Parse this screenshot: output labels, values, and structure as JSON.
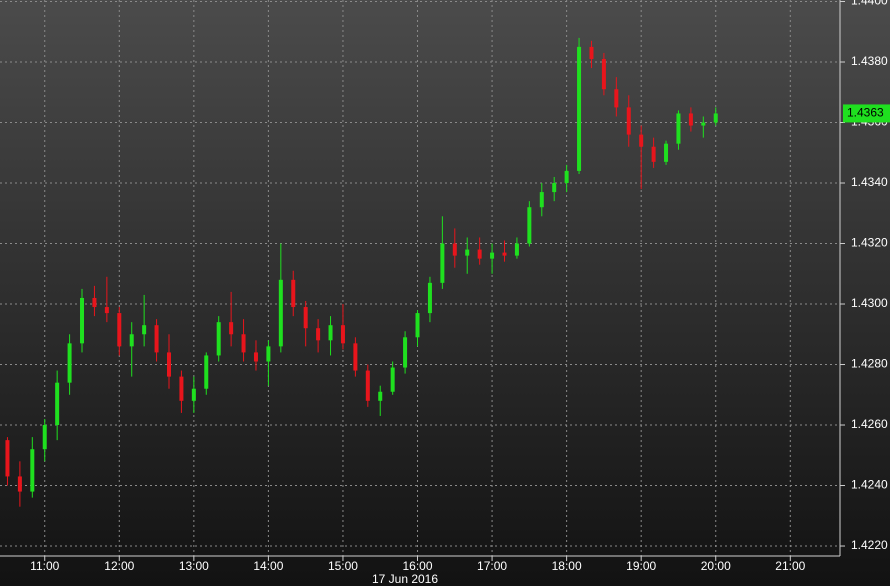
{
  "chart_data": {
    "type": "candlestick",
    "up_color": "#1fe01f",
    "down_color": "#e8151c",
    "grid": true,
    "x": [
      630,
      640,
      650,
      660,
      670,
      680,
      690,
      700,
      710,
      720,
      730,
      740,
      750,
      760,
      770,
      780,
      790,
      800,
      810,
      820,
      830,
      840,
      850,
      860,
      870,
      880,
      890,
      900,
      910,
      920,
      930,
      940,
      950,
      960,
      970,
      980,
      990,
      1000,
      1010,
      1020,
      1030,
      1040,
      1050,
      1060,
      1070,
      1080,
      1090,
      1100,
      1110,
      1120,
      1130,
      1140,
      1150,
      1160,
      1170,
      1180,
      1190,
      1200
    ],
    "open": [
      1.4255,
      1.4243,
      1.4238,
      1.4252,
      1.426,
      1.4274,
      1.4287,
      1.4302,
      1.4299,
      1.4297,
      1.4286,
      1.429,
      1.4293,
      1.4284,
      1.4276,
      1.4268,
      1.4272,
      1.4283,
      1.4294,
      1.429,
      1.4284,
      1.4281,
      1.4286,
      1.4308,
      1.4299,
      1.4292,
      1.4288,
      1.4293,
      1.4287,
      1.4278,
      1.4268,
      1.4271,
      1.4279,
      1.4289,
      1.4297,
      1.4307,
      1.432,
      1.4316,
      1.4318,
      1.4315,
      1.4317,
      1.4316,
      1.432,
      1.4332,
      1.4337,
      1.434,
      1.4344,
      1.4385,
      1.4381,
      1.4371,
      1.4365,
      1.4356,
      1.4352,
      1.4347,
      1.4353,
      1.4363,
      1.4359,
      1.436
    ],
    "high": [
      1.4256,
      1.4248,
      1.4256,
      1.4262,
      1.4278,
      1.429,
      1.4305,
      1.4306,
      1.4309,
      1.4299,
      1.4294,
      1.4303,
      1.4295,
      1.429,
      1.4278,
      1.4276,
      1.4284,
      1.4296,
      1.4304,
      1.4295,
      1.4288,
      1.4288,
      1.432,
      1.4311,
      1.4301,
      1.4295,
      1.4296,
      1.43,
      1.4289,
      1.428,
      1.4273,
      1.4281,
      1.4291,
      1.4298,
      1.4309,
      1.4329,
      1.4325,
      1.4322,
      1.4322,
      1.432,
      1.4321,
      1.4322,
      1.4334,
      1.434,
      1.4342,
      1.4346,
      1.4388,
      1.4387,
      1.4383,
      1.4375,
      1.4369,
      1.4359,
      1.4355,
      1.4354,
      1.4364,
      1.4365,
      1.4362,
      1.4365
    ],
    "low": [
      1.424,
      1.4233,
      1.4236,
      1.4248,
      1.4255,
      1.427,
      1.4284,
      1.4296,
      1.4294,
      1.4283,
      1.4276,
      1.4286,
      1.4281,
      1.4272,
      1.4264,
      1.4264,
      1.427,
      1.4281,
      1.4286,
      1.4281,
      1.4278,
      1.4273,
      1.4284,
      1.4296,
      1.4286,
      1.4284,
      1.4283,
      1.4285,
      1.4276,
      1.4266,
      1.4263,
      1.427,
      1.4277,
      1.4286,
      1.4294,
      1.4305,
      1.4312,
      1.431,
      1.4313,
      1.431,
      1.4314,
      1.4315,
      1.4319,
      1.4329,
      1.4334,
      1.4337,
      1.4343,
      1.4378,
      1.4369,
      1.4362,
      1.4352,
      1.4338,
      1.4345,
      1.4346,
      1.4351,
      1.4357,
      1.4355,
      1.4359
    ],
    "close": [
      1.4243,
      1.4238,
      1.4252,
      1.426,
      1.4274,
      1.4287,
      1.4302,
      1.4299,
      1.4297,
      1.4286,
      1.429,
      1.4293,
      1.4284,
      1.4276,
      1.4268,
      1.4272,
      1.4283,
      1.4294,
      1.429,
      1.4284,
      1.4281,
      1.4286,
      1.4308,
      1.4299,
      1.4292,
      1.4288,
      1.4293,
      1.4287,
      1.4278,
      1.4268,
      1.4271,
      1.4279,
      1.4289,
      1.4297,
      1.4307,
      1.432,
      1.4316,
      1.4318,
      1.4315,
      1.4317,
      1.4316,
      1.432,
      1.4332,
      1.4337,
      1.434,
      1.4344,
      1.4385,
      1.4381,
      1.4371,
      1.4365,
      1.4356,
      1.4352,
      1.4347,
      1.4353,
      1.4363,
      1.4359,
      1.436,
      1.4363
    ],
    "xlim": [
      624,
      1300
    ],
    "ylim": [
      1.42167,
      1.44005
    ],
    "xticks": [
      {
        "value": 660,
        "label": "11:00"
      },
      {
        "value": 720,
        "label": "12:00"
      },
      {
        "value": 780,
        "label": "13:00"
      },
      {
        "value": 840,
        "label": "14:00"
      },
      {
        "value": 900,
        "label": "15:00"
      },
      {
        "value": 960,
        "label": "16:00"
      },
      {
        "value": 1020,
        "label": "17:00"
      },
      {
        "value": 1080,
        "label": "18:00"
      },
      {
        "value": 1140,
        "label": "19:00"
      },
      {
        "value": 1200,
        "label": "20:00"
      },
      {
        "value": 1260,
        "label": "21:00"
      }
    ],
    "yticks": [
      {
        "value": 1.422,
        "label": "1.4220"
      },
      {
        "value": 1.424,
        "label": "1.4240"
      },
      {
        "value": 1.426,
        "label": "1.4260"
      },
      {
        "value": 1.428,
        "label": "1.4280"
      },
      {
        "value": 1.43,
        "label": "1.4300"
      },
      {
        "value": 1.432,
        "label": "1.4320"
      },
      {
        "value": 1.434,
        "label": "1.4340"
      },
      {
        "value": 1.436,
        "label": "1.4360"
      },
      {
        "value": 1.438,
        "label": "1.4380"
      },
      {
        "value": 1.44,
        "label": "1.4400"
      }
    ],
    "date_label": "17 Jun 2016",
    "last_price": 1.4363
  }
}
